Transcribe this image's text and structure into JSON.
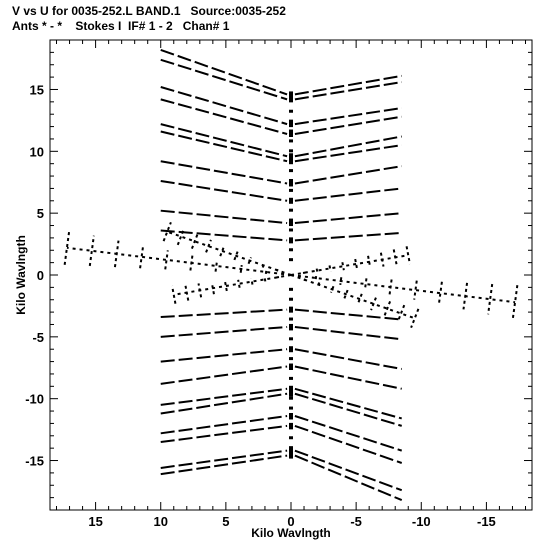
{
  "header": {
    "line1": "V vs U for 0035-252.L BAND.1   Source:0035-252",
    "line2": "Ants * - *    Stokes I  IF# 1 - 2   Chan# 1"
  },
  "chart_data": {
    "type": "scatter",
    "title": "V vs U for 0035-252.L BAND.1   Source:0035-252",
    "subtitle": "Ants * - *    Stokes I  IF# 1 - 2   Chan# 1",
    "xlabel": "Kilo Wavlngth",
    "ylabel": "Kilo Wavlngth",
    "xlim": [
      18.5,
      -18.5
    ],
    "ylim": [
      -19,
      19
    ],
    "x_reversed": true,
    "xticks": [
      15,
      10,
      5,
      0,
      -5,
      -10,
      -15
    ],
    "yticks": [
      15,
      10,
      5,
      0,
      -5,
      -10,
      -15
    ],
    "xtick_labels": [
      "15",
      "10",
      "5",
      "0",
      "-5",
      "-10",
      "-15"
    ],
    "ytick_labels": [
      "15",
      "10",
      "5",
      "0",
      "-5",
      "-10",
      "-15"
    ],
    "grid": false,
    "legend": false,
    "marker_color": "#000000",
    "series": [
      {
        "values": [
          {
            "u": 0,
            "v": 14.6,
            "left_u": 10,
            "left_v": 18.2,
            "right_u": -8.5,
            "right_v": 16.1
          },
          {
            "u": 0,
            "v": 14.2,
            "left_u": 10,
            "left_v": 17.4,
            "right_u": -8.5,
            "right_v": 15.6
          },
          {
            "u": 0,
            "v": 12.2,
            "left_u": 10,
            "left_v": 15.2,
            "right_u": -8.5,
            "right_v": 13.5
          },
          {
            "u": 0,
            "v": 11.4,
            "left_u": 10,
            "left_v": 14.2,
            "right_u": -8.5,
            "right_v": 12.8
          },
          {
            "u": 0,
            "v": 9.6,
            "left_u": 10,
            "left_v": 12.2,
            "right_u": -8.5,
            "right_v": 11.2
          },
          {
            "u": 0,
            "v": 9.2,
            "left_u": 10,
            "left_v": 11.6,
            "right_u": -8.5,
            "right_v": 10.5
          },
          {
            "u": 0,
            "v": 7.4,
            "left_u": 10,
            "left_v": 9.2,
            "right_u": -8.5,
            "right_v": 8.8
          },
          {
            "u": 0,
            "v": 6.0,
            "left_u": 10,
            "left_v": 7.6,
            "right_u": -8.5,
            "right_v": 7.0
          },
          {
            "u": 0,
            "v": 4.2,
            "left_u": 10,
            "left_v": 5.2,
            "right_u": -8.5,
            "right_v": 5.0
          },
          {
            "u": 0,
            "v": 2.8,
            "left_u": 10,
            "left_v": 3.6,
            "right_u": -8.5,
            "right_v": 3.4
          },
          {
            "u": 0,
            "v": -2.8,
            "left_u": 10,
            "left_v": -3.4,
            "right_u": -8.5,
            "right_v": -3.6
          },
          {
            "u": 0,
            "v": -4.2,
            "left_u": 10,
            "left_v": -5.0,
            "right_u": -8.5,
            "right_v": -5.2
          },
          {
            "u": 0,
            "v": -6.0,
            "left_u": 10,
            "left_v": -7.0,
            "right_u": -8.5,
            "right_v": -7.6
          },
          {
            "u": 0,
            "v": -7.4,
            "left_u": 10,
            "left_v": -8.8,
            "right_u": -8.5,
            "right_v": -9.2
          },
          {
            "u": 0,
            "v": -9.2,
            "left_u": 10,
            "left_v": -10.5,
            "right_u": -8.5,
            "right_v": -11.6
          },
          {
            "u": 0,
            "v": -9.6,
            "left_u": 10,
            "left_v": -11.2,
            "right_u": -8.5,
            "right_v": -12.2
          },
          {
            "u": 0,
            "v": -11.4,
            "left_u": 10,
            "left_v": -12.8,
            "right_u": -8.5,
            "right_v": -14.2
          },
          {
            "u": 0,
            "v": -12.2,
            "left_u": 10,
            "left_v": -13.5,
            "right_u": -8.5,
            "right_v": -15.2
          },
          {
            "u": 0,
            "v": -14.2,
            "left_u": 10,
            "left_v": -15.6,
            "right_u": -8.5,
            "right_v": -17.4
          },
          {
            "u": 0,
            "v": -14.6,
            "left_u": 10,
            "left_v": -16.1,
            "right_u": -8.5,
            "right_v": -18.2
          }
        ]
      },
      {
        "values": [
          {
            "from_u": 0,
            "from_v": 0,
            "to_u": 17.2,
            "to_v": 2.2
          },
          {
            "from_u": 0,
            "from_v": 0,
            "to_u": -17.2,
            "to_v": -2.2
          },
          {
            "from_u": 0,
            "from_v": 0,
            "to_u": 9.5,
            "to_v": 3.5
          },
          {
            "from_u": 0,
            "from_v": 0,
            "to_u": -9.5,
            "to_v": -3.5
          },
          {
            "from_u": 0,
            "from_v": 0,
            "to_u": 9.0,
            "to_v": -1.6
          },
          {
            "from_u": 0,
            "from_v": 0,
            "to_u": -9.0,
            "to_v": 1.6
          }
        ]
      }
    ]
  }
}
